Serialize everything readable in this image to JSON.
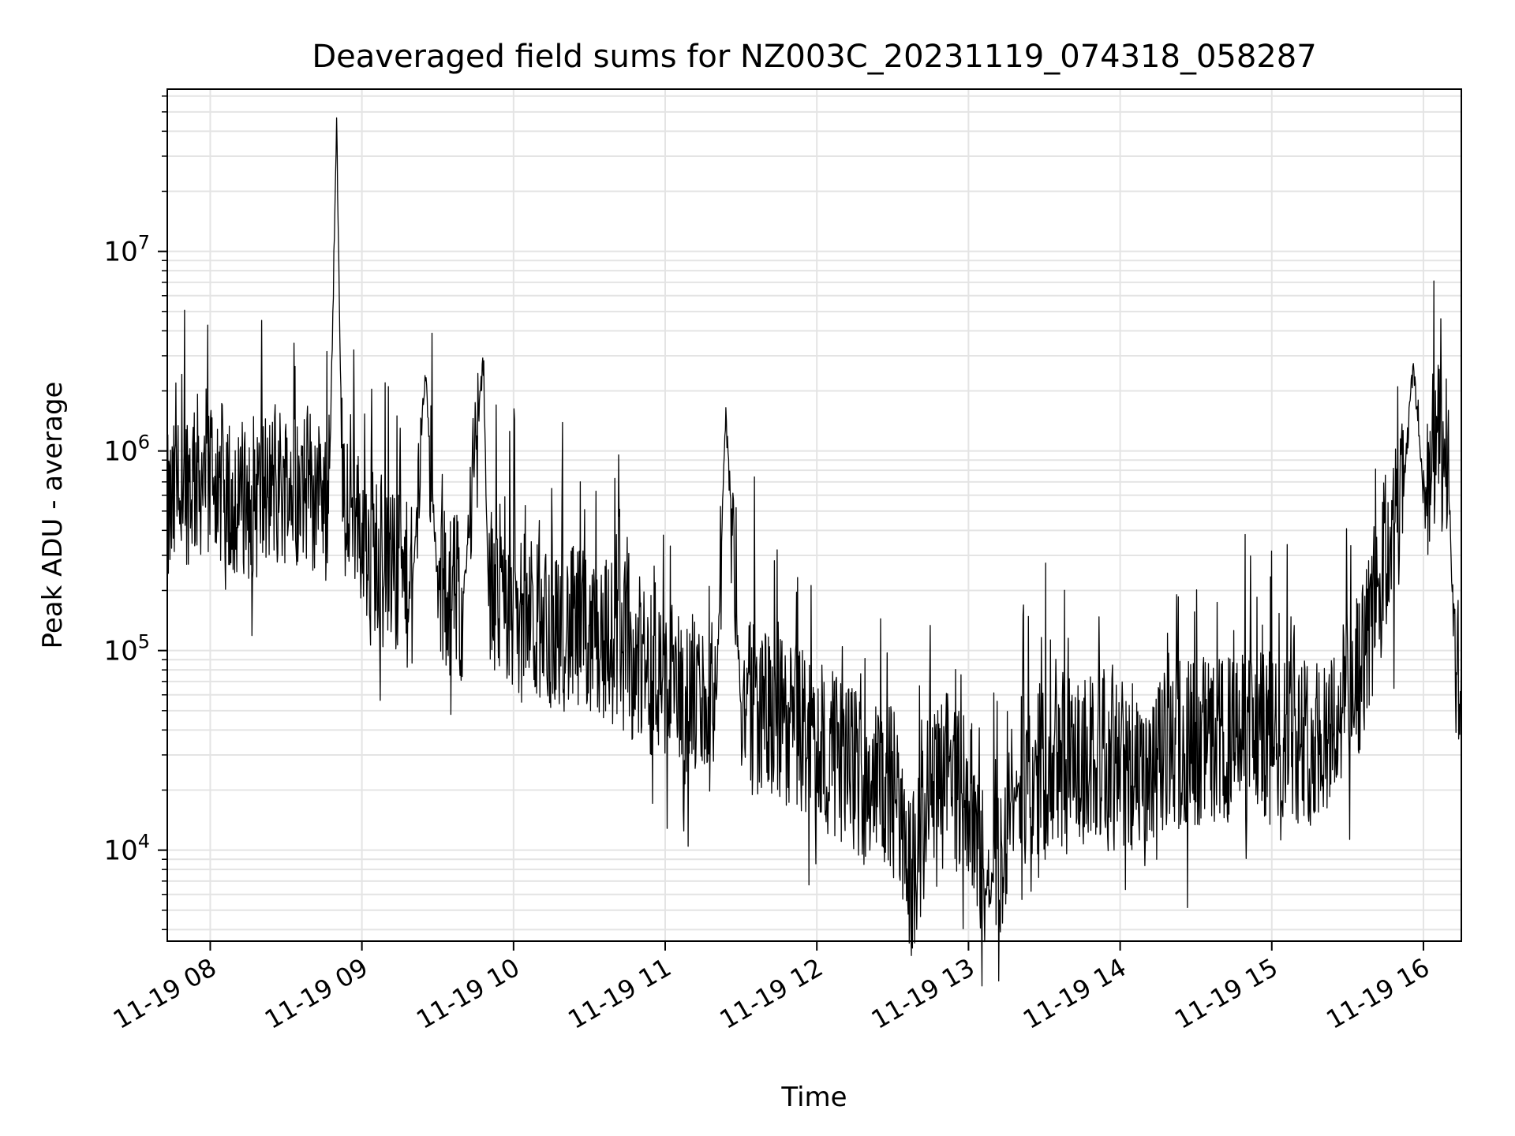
{
  "chart_data": {
    "type": "line",
    "title": "Deaveraged field sums for NZ003C_20231119_074318_058287",
    "xlabel": "Time",
    "ylabel": "Peak ADU - average",
    "yscale": "log",
    "xlim": [
      "2023-11-19T07:43",
      "2023-11-19T16:15"
    ],
    "ylim": [
      3500,
      65000000
    ],
    "grid": "major and minor",
    "line_color": "#000000",
    "grid_color": "#e4e4e4",
    "x_ticks": [
      {
        "value": "2023-11-19T08:00",
        "label": "11-19 08"
      },
      {
        "value": "2023-11-19T09:00",
        "label": "11-19 09"
      },
      {
        "value": "2023-11-19T10:00",
        "label": "11-19 10"
      },
      {
        "value": "2023-11-19T11:00",
        "label": "11-19 11"
      },
      {
        "value": "2023-11-19T12:00",
        "label": "11-19 12"
      },
      {
        "value": "2023-11-19T13:00",
        "label": "11-19 13"
      },
      {
        "value": "2023-11-19T14:00",
        "label": "11-19 14"
      },
      {
        "value": "2023-11-19T15:00",
        "label": "11-19 15"
      },
      {
        "value": "2023-11-19T16:00",
        "label": "11-19 16"
      }
    ],
    "y_ticks": [
      {
        "value": 10000,
        "base": "10",
        "exp": "4"
      },
      {
        "value": 100000,
        "base": "10",
        "exp": "5"
      },
      {
        "value": 1000000,
        "base": "10",
        "exp": "6"
      },
      {
        "value": 10000000,
        "base": "10",
        "exp": "7"
      }
    ],
    "series": [
      {
        "x": [
          "2023-11-19T07:43",
          "2023-11-19T07:50",
          "2023-11-19T08:00",
          "2023-11-19T08:10",
          "2023-11-19T08:20",
          "2023-11-19T08:30",
          "2023-11-19T08:40",
          "2023-11-19T08:47",
          "2023-11-19T08:50",
          "2023-11-19T08:52",
          "2023-11-19T08:54",
          "2023-11-19T09:00",
          "2023-11-19T09:10",
          "2023-11-19T09:20",
          "2023-11-19T09:25",
          "2023-11-19T09:30",
          "2023-11-19T09:40",
          "2023-11-19T09:48",
          "2023-11-19T09:50",
          "2023-11-19T10:00",
          "2023-11-19T10:20",
          "2023-11-19T10:40",
          "2023-11-19T11:00",
          "2023-11-19T11:20",
          "2023-11-19T11:24",
          "2023-11-19T11:30",
          "2023-11-19T11:45",
          "2023-11-19T12:00",
          "2023-11-19T12:15",
          "2023-11-19T12:30",
          "2023-11-19T12:38",
          "2023-11-19T12:45",
          "2023-11-19T13:00",
          "2023-11-19T13:08",
          "2023-11-19T13:20",
          "2023-11-19T13:40",
          "2023-11-19T14:00",
          "2023-11-19T14:10",
          "2023-11-19T14:20",
          "2023-11-19T14:40",
          "2023-11-19T15:00",
          "2023-11-19T15:15",
          "2023-11-19T15:25",
          "2023-11-19T15:35",
          "2023-11-19T15:45",
          "2023-11-19T15:52",
          "2023-11-19T15:56",
          "2023-11-19T16:00",
          "2023-11-19T16:05",
          "2023-11-19T16:10",
          "2023-11-19T16:12",
          "2023-11-19T16:15"
        ],
        "y": [
          450000,
          700000,
          800000,
          550000,
          600000,
          700000,
          650000,
          600000,
          42000000,
          1000000,
          700000,
          400000,
          250000,
          200000,
          2500000,
          220000,
          180000,
          2800000,
          200000,
          150000,
          130000,
          110000,
          70000,
          50000,
          1500000,
          55000,
          45000,
          35000,
          25000,
          20000,
          7000,
          22000,
          20000,
          5500,
          22000,
          28000,
          30000,
          18000,
          35000,
          35000,
          38000,
          35000,
          45000,
          80000,
          300000,
          600000,
          2800000,
          600000,
          1100000,
          700000,
          100000,
          55000
        ]
      }
    ]
  }
}
